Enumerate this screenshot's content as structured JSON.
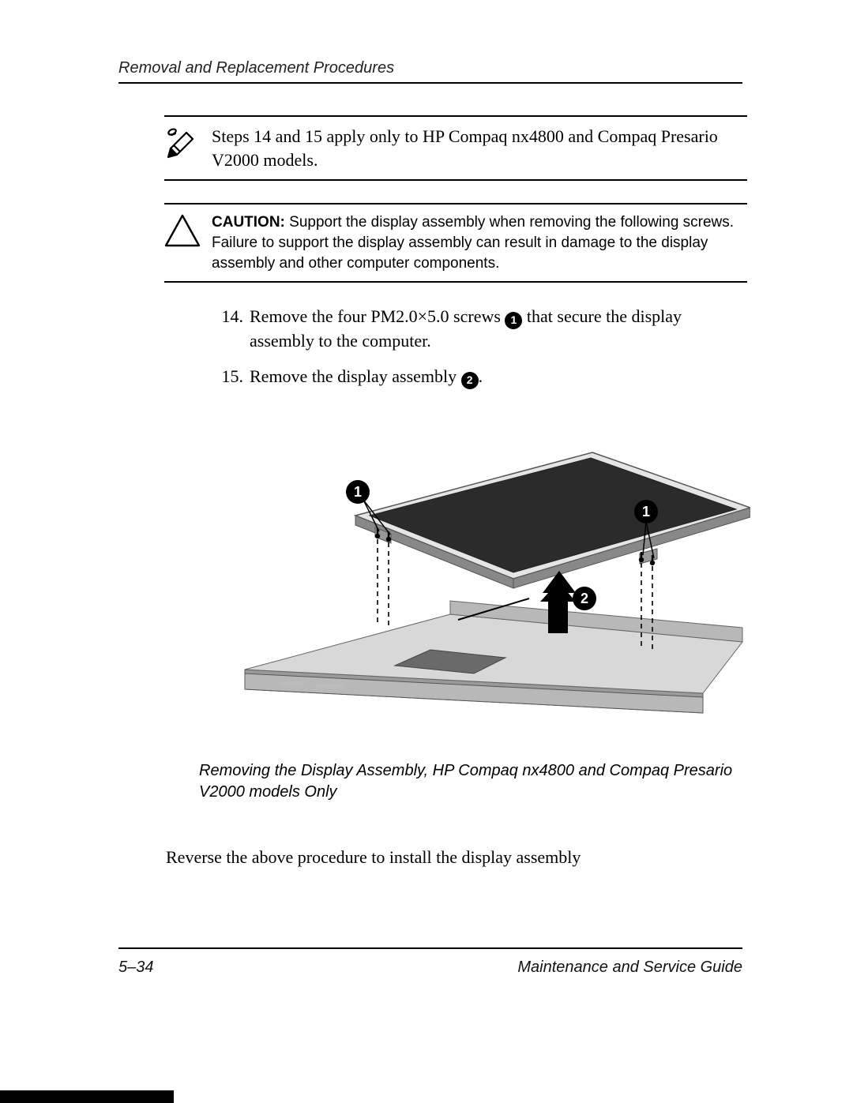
{
  "header": {
    "title": "Removal and Replacement Procedures"
  },
  "note": {
    "text": "Steps 14 and 15 apply only to HP Compaq nx4800 and Compaq Presario V2000 models."
  },
  "caution": {
    "label": "CAUTION:",
    "text": " Support the display assembly when removing the following screws. Failure to support the display assembly can result in damage to the display assembly and other computer components."
  },
  "steps": [
    {
      "num": "14.",
      "pre": "Remove the four PM2.0×5.0 screws ",
      "marker": "1",
      "post": " that secure the display assembly to the computer."
    },
    {
      "num": "15.",
      "pre": "Remove the display assembly ",
      "marker": "2",
      "post": "."
    }
  ],
  "figure": {
    "caption": "Removing the Display Assembly, HP Compaq nx4800 and Compaq Presario V2000 models Only",
    "markers": {
      "m1": "1",
      "m2": "2"
    },
    "colors": {
      "screen": "#2b2b2b",
      "bezel_light": "#e5e5e5",
      "bezel_dark": "#888888",
      "base_top": "#d8d8d8",
      "base_side": "#9a9a9a",
      "base_edge": "#b8b8b8",
      "pad": "#6a6a6a",
      "arrow": "#000000",
      "marker_bg": "#000000",
      "marker_fg": "#ffffff",
      "screw_line": "#000000"
    }
  },
  "closing": {
    "text": "Reverse the above procedure to install the display assembly"
  },
  "footer": {
    "page": "5–34",
    "guide": "Maintenance and Service Guide"
  }
}
